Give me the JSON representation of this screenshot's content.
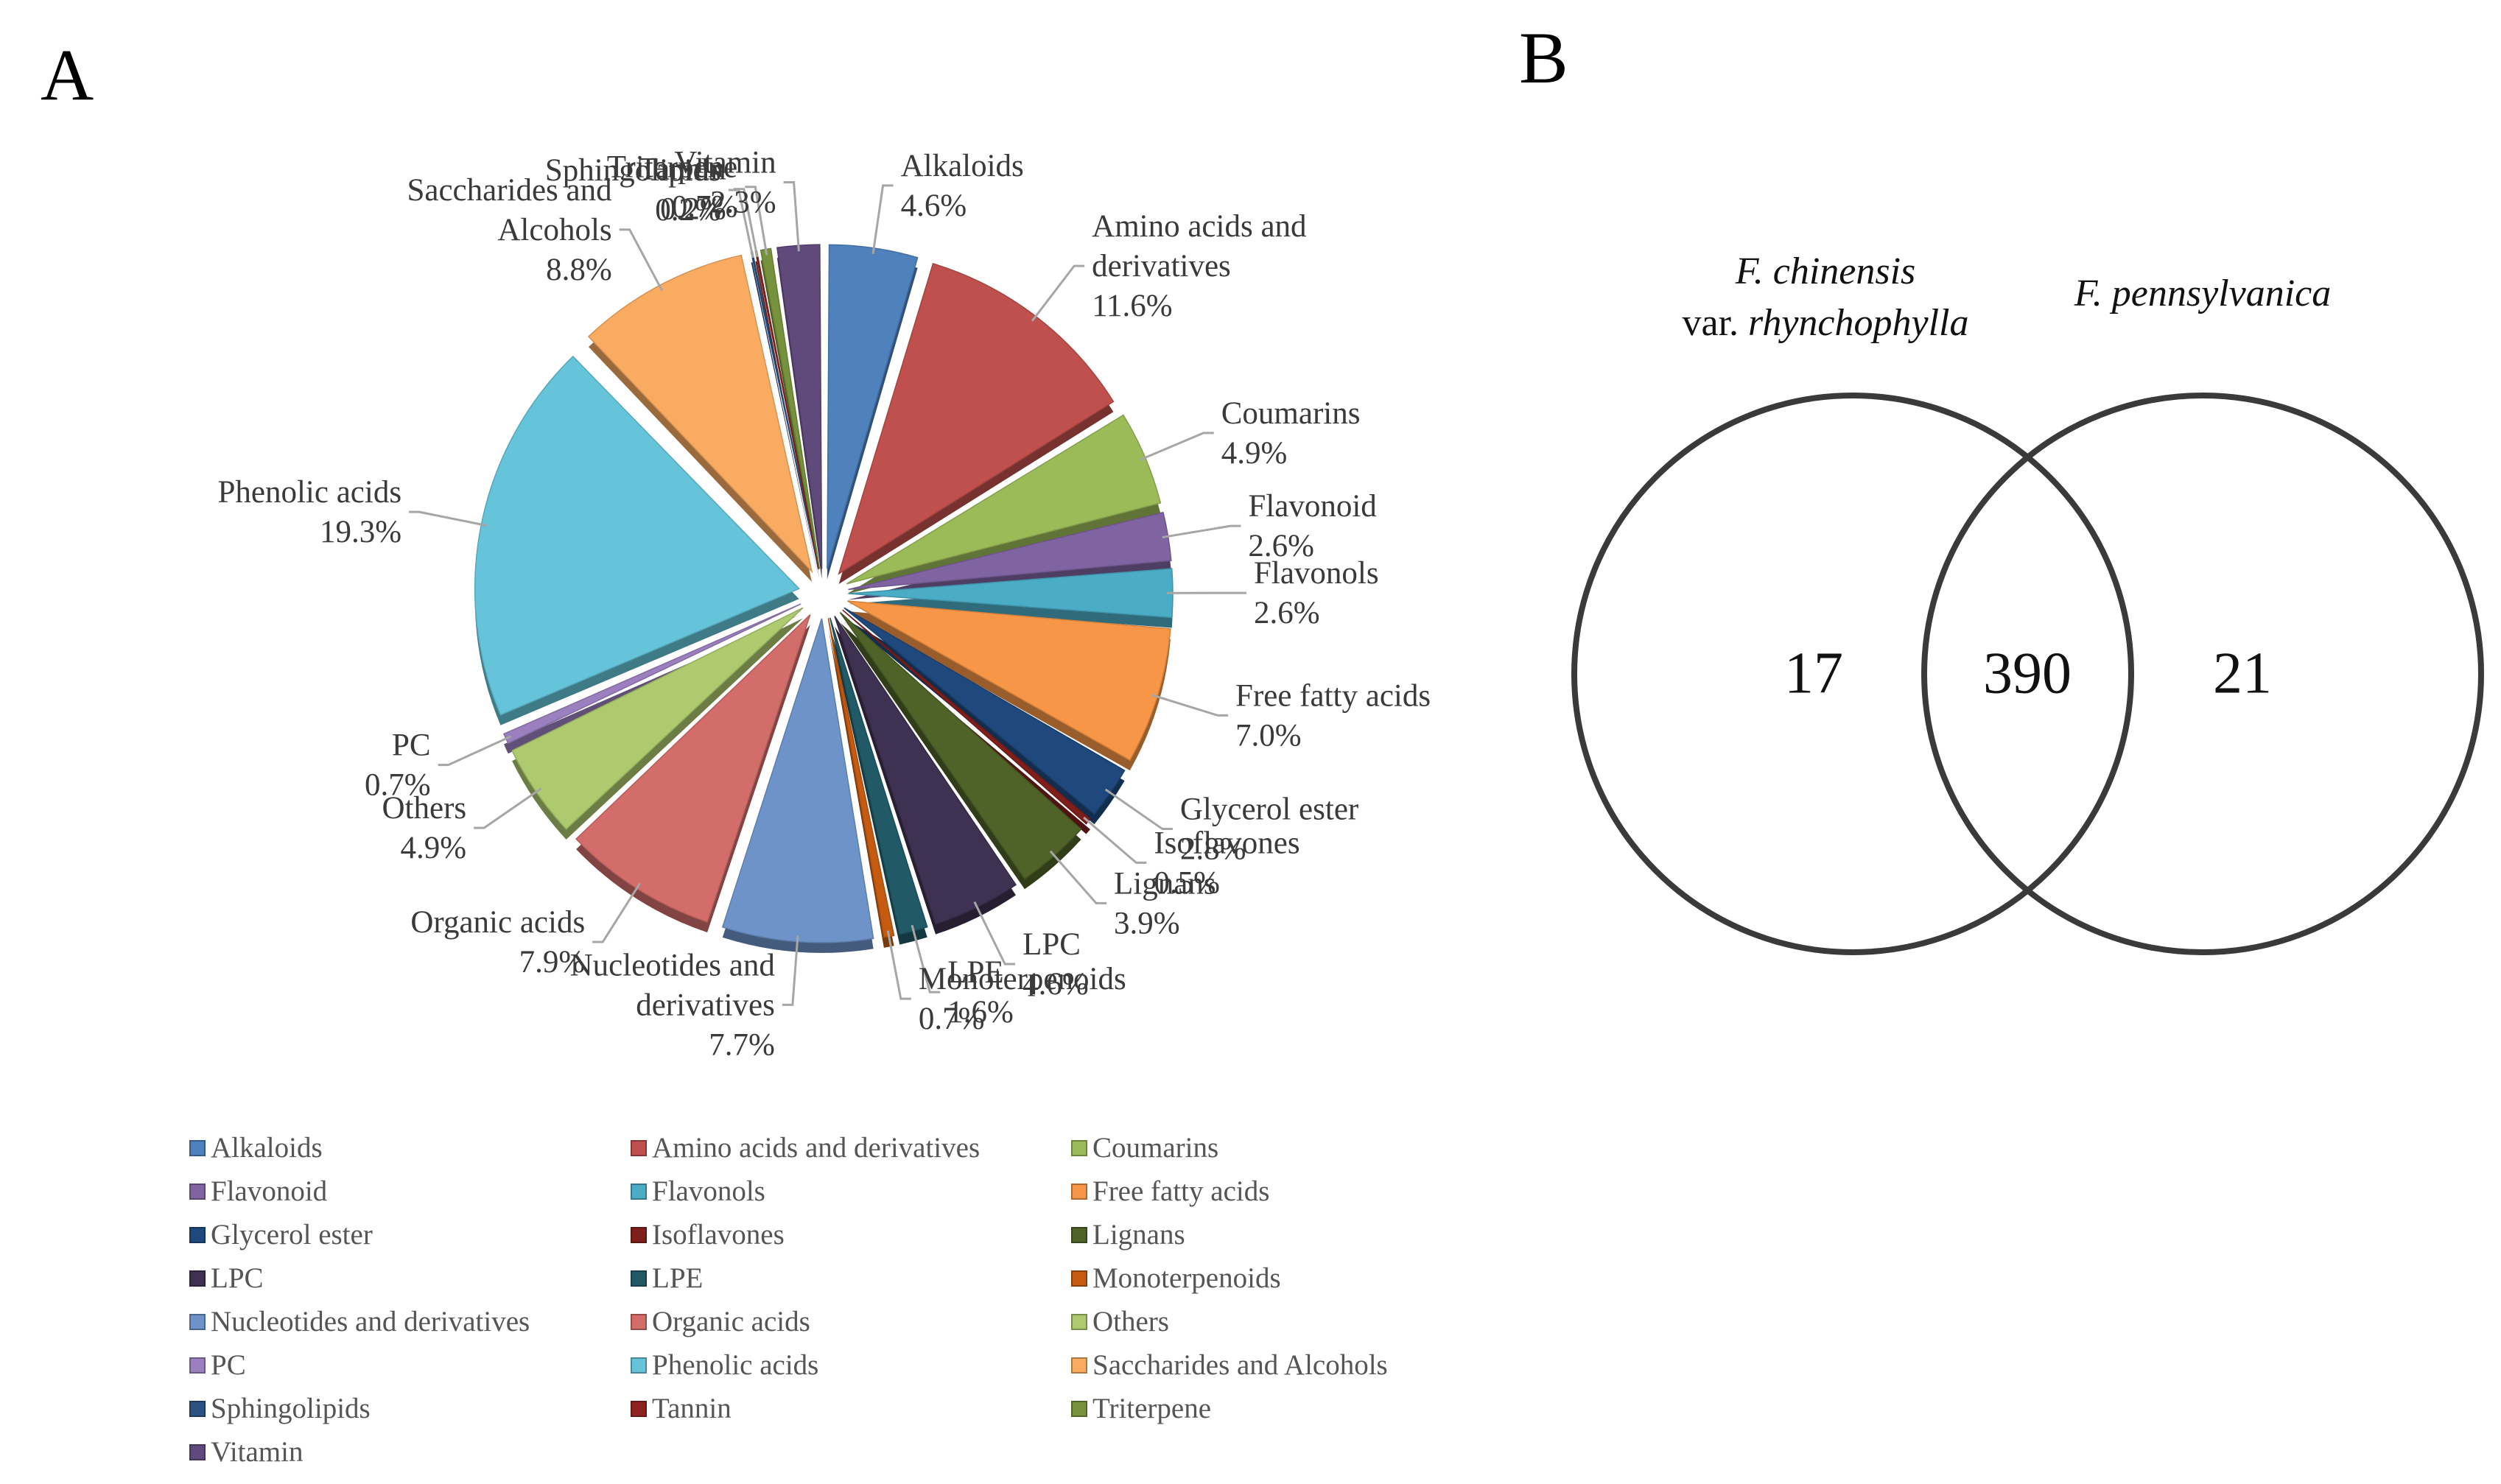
{
  "panel_a": {
    "letter": "A"
  },
  "panel_b": {
    "letter": "B"
  },
  "chart_data": [
    {
      "type": "pie",
      "title": "",
      "slices": [
        {
          "label": "Alkaloids",
          "lines": [
            "Alkaloids"
          ],
          "pct_text": "4.6%",
          "value": 4.6,
          "color": "#4F81BD"
        },
        {
          "label": "Amino acids and derivatives",
          "lines": [
            "Amino acids and",
            "derivatives"
          ],
          "pct_text": "11.6%",
          "value": 11.6,
          "color": "#C0504D"
        },
        {
          "label": "Coumarins",
          "lines": [
            "Coumarins"
          ],
          "pct_text": "4.9%",
          "value": 4.9,
          "color": "#9BBB59"
        },
        {
          "label": "Flavonoid",
          "lines": [
            "Flavonoid"
          ],
          "pct_text": "2.6%",
          "value": 2.6,
          "color": "#8064A2"
        },
        {
          "label": "Flavonols",
          "lines": [
            "Flavonols"
          ],
          "pct_text": "2.6%",
          "value": 2.6,
          "color": "#4BACC6"
        },
        {
          "label": "Free fatty acids",
          "lines": [
            "Free fatty acids"
          ],
          "pct_text": "7.0%",
          "value": 7.0,
          "color": "#F79646"
        },
        {
          "label": "Glycerol ester",
          "lines": [
            "Glycerol ester"
          ],
          "pct_text": "2.8%",
          "value": 2.8,
          "color": "#1F497D"
        },
        {
          "label": "Isoflavones",
          "lines": [
            "Isoflavones"
          ],
          "pct_text": "0.5%",
          "value": 0.5,
          "color": "#7F1F1B"
        },
        {
          "label": "Lignans",
          "lines": [
            "Lignans"
          ],
          "pct_text": "3.9%",
          "value": 3.9,
          "color": "#4F6228"
        },
        {
          "label": "LPC",
          "lines": [
            "LPC"
          ],
          "pct_text": "4.6%",
          "value": 4.6,
          "color": "#3F3151"
        },
        {
          "label": "LPE",
          "lines": [
            "LPE"
          ],
          "pct_text": "1.6%",
          "value": 1.6,
          "color": "#215967"
        },
        {
          "label": "Monoterpenoids",
          "lines": [
            "Monoterpenoids"
          ],
          "pct_text": "0.7%",
          "value": 0.7,
          "color": "#C55A11"
        },
        {
          "label": "Nucleotides and derivatives",
          "lines": [
            "Nucleotides and",
            "derivatives"
          ],
          "pct_text": "7.7%",
          "value": 7.7,
          "color": "#6D93C9"
        },
        {
          "label": "Organic acids",
          "lines": [
            "Organic acids"
          ],
          "pct_text": "7.9%",
          "value": 7.9,
          "color": "#D26D6A"
        },
        {
          "label": "Others",
          "lines": [
            "Others"
          ],
          "pct_text": "4.9%",
          "value": 4.9,
          "color": "#ADCA6E"
        },
        {
          "label": "PC",
          "lines": [
            "PC"
          ],
          "pct_text": "0.7%",
          "value": 0.7,
          "color": "#9B7FBE"
        },
        {
          "label": "Phenolic acids",
          "lines": [
            "Phenolic acids"
          ],
          "pct_text": "19.3%",
          "value": 19.3,
          "color": "#66C4DA"
        },
        {
          "label": "Saccharides and Alcohols",
          "lines": [
            "Saccharides and",
            "Alcohols"
          ],
          "pct_text": "8.8%",
          "value": 8.8,
          "color": "#F9AB62"
        },
        {
          "label": "Sphingolipids",
          "lines": [
            "Sphingolipids"
          ],
          "pct_text": "0.2%",
          "value": 0.2,
          "color": "#2C5282"
        },
        {
          "label": "Tannin",
          "lines": [
            "Tannin"
          ],
          "pct_text": "0.2%",
          "value": 0.2,
          "color": "#8E2320"
        },
        {
          "label": "Triterpene",
          "lines": [
            "Triterpene"
          ],
          "pct_text": "0.7%",
          "value": 0.7,
          "color": "#76923C"
        },
        {
          "label": "Vitamin",
          "lines": [
            "Vitamin"
          ],
          "pct_text": "2.3%",
          "value": 2.3,
          "color": "#604A7B"
        }
      ],
      "legend_position": "bottom",
      "exploded": true
    },
    {
      "type": "venn",
      "sets": [
        {
          "name_lines": [
            [
              "F. chinensis"
            ],
            [
              "var. ",
              "rhynchophylla"
            ]
          ],
          "name": "F. chinensis var. rhynchophylla",
          "only": 17
        },
        {
          "name_lines": [
            [
              "F. pennsylvanica"
            ]
          ],
          "name": "F. pennsylvanica",
          "only": 21
        }
      ],
      "shared": 390
    }
  ]
}
